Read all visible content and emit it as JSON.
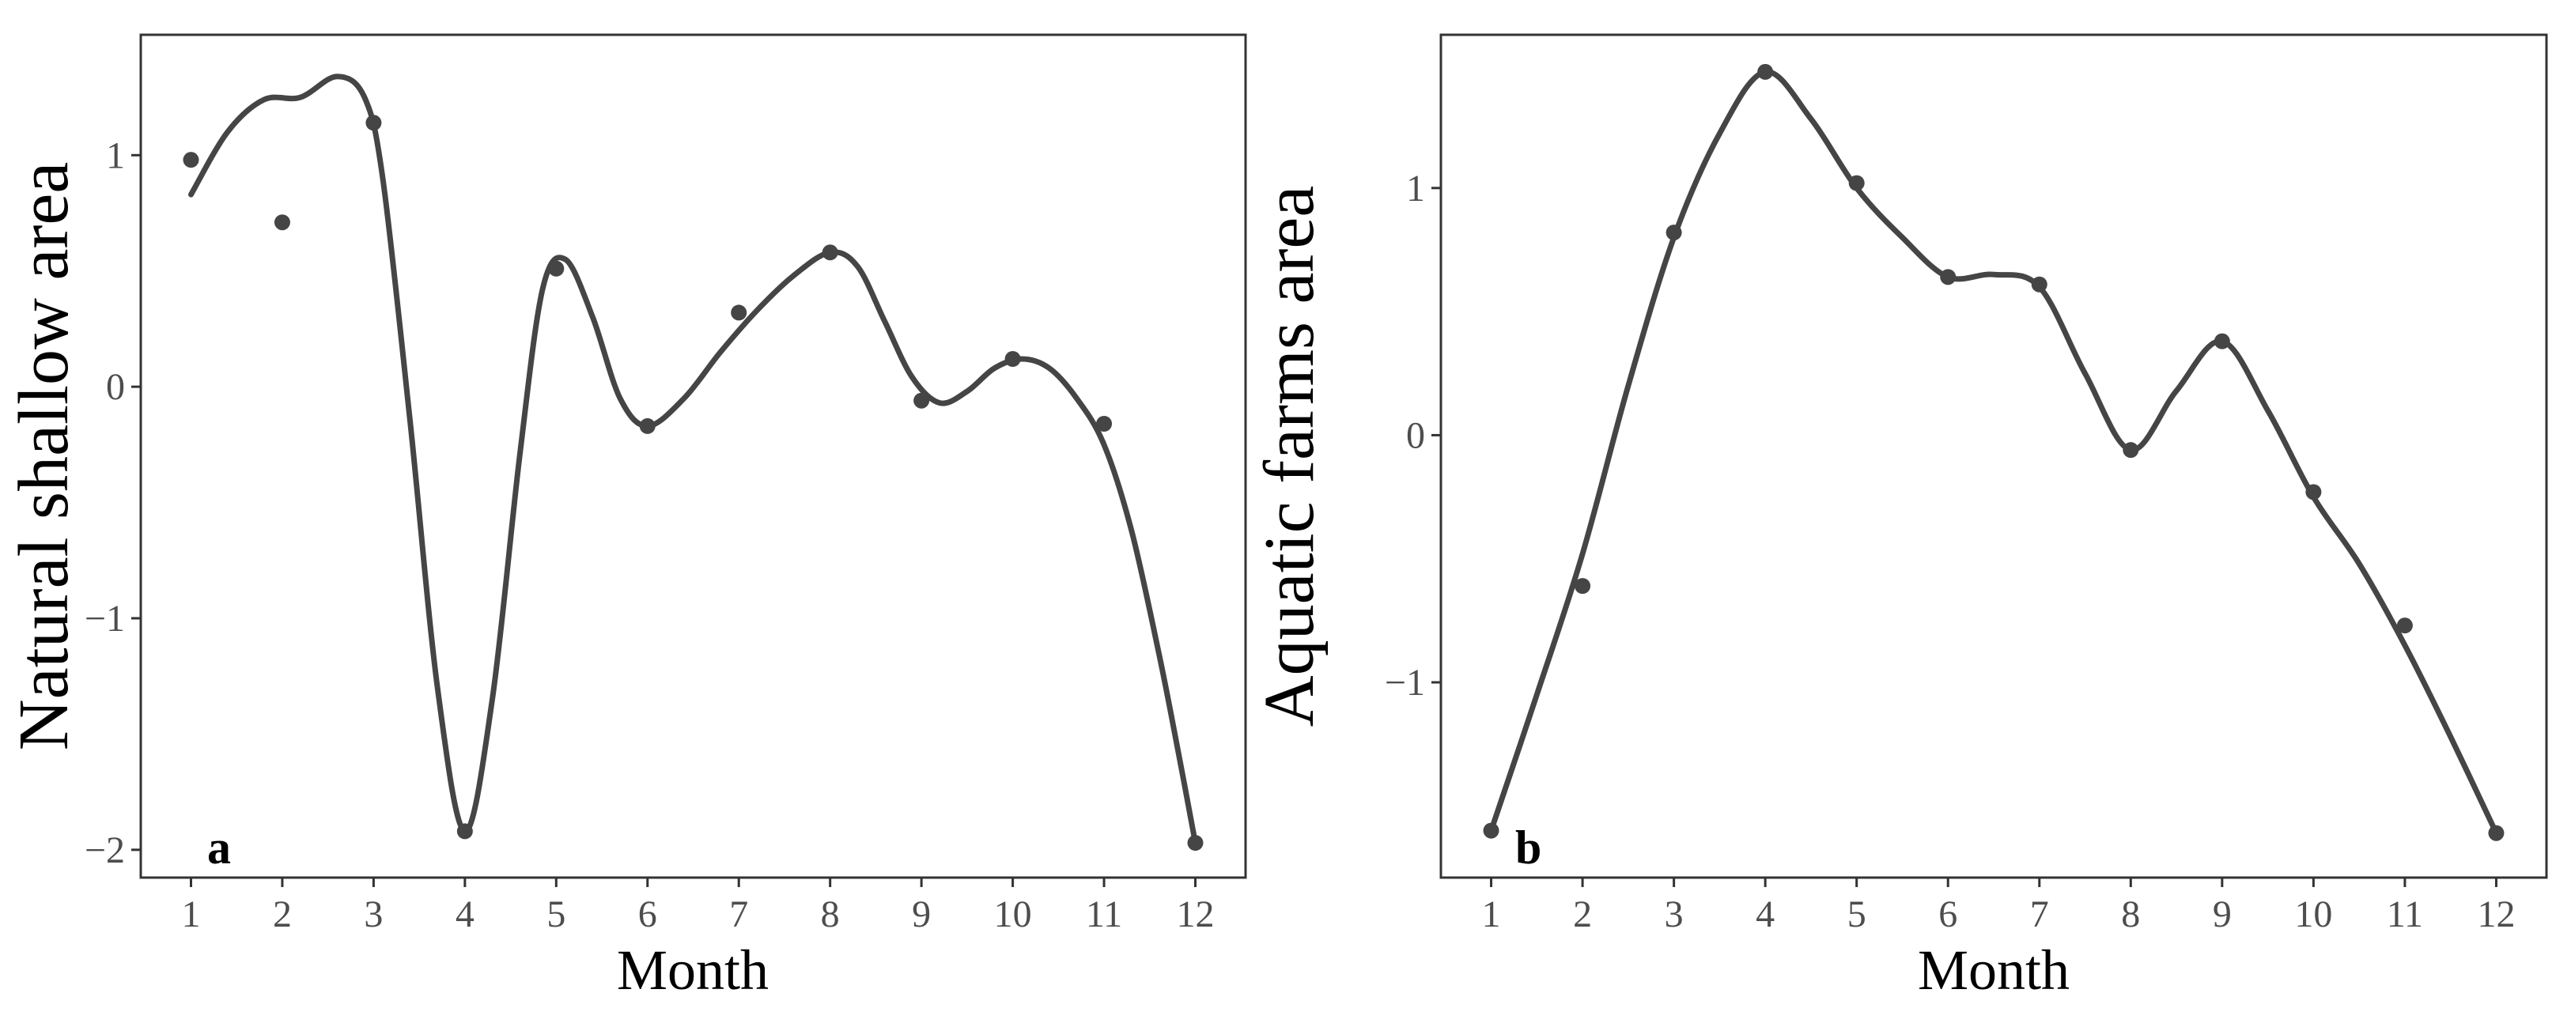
{
  "colors": {
    "series": "#454545",
    "frame": "#333333",
    "tick_text": "#4d4d4d"
  },
  "chart_data": [
    {
      "type": "line",
      "panel_label": "a",
      "title": "",
      "xlabel": "Month",
      "ylabel": "Natural shallow area",
      "xlim": [
        0.45,
        12.55
      ],
      "ylim": [
        -2.12,
        1.52
      ],
      "x_ticks": [
        1,
        2,
        3,
        4,
        5,
        6,
        7,
        8,
        9,
        10,
        11,
        12
      ],
      "y_ticks": [
        -2,
        -1,
        0,
        1
      ],
      "y_tick_labels": [
        "−2",
        "−1",
        "0",
        "1"
      ],
      "grid": false,
      "legend": "none",
      "points": {
        "x": [
          1,
          2,
          3,
          4,
          5,
          6,
          7,
          8,
          9,
          10,
          11,
          12
        ],
        "y": [
          0.98,
          0.71,
          1.14,
          -1.92,
          0.51,
          -0.17,
          0.32,
          0.58,
          -0.06,
          0.12,
          -0.16,
          -1.97
        ]
      },
      "smooth_curve": {
        "x": [
          1,
          1.4,
          1.8,
          2.2,
          2.6,
          2.9,
          3.1,
          3.4,
          3.7,
          4,
          4.3,
          4.6,
          4.85,
          5.1,
          5.4,
          5.7,
          6,
          6.4,
          6.8,
          7.2,
          7.6,
          8,
          8.3,
          8.6,
          8.9,
          9.2,
          9.5,
          9.8,
          10.1,
          10.4,
          10.7,
          11,
          11.3,
          11.6,
          11.8,
          12
        ],
        "y": [
          0.83,
          1.1,
          1.24,
          1.25,
          1.34,
          1.25,
          0.9,
          -0.15,
          -1.3,
          -1.92,
          -1.35,
          -0.3,
          0.42,
          0.55,
          0.3,
          -0.05,
          -0.17,
          -0.05,
          0.15,
          0.33,
          0.48,
          0.58,
          0.52,
          0.28,
          0.04,
          -0.07,
          -0.02,
          0.08,
          0.12,
          0.08,
          -0.05,
          -0.25,
          -0.62,
          -1.15,
          -1.55,
          -1.97
        ]
      }
    },
    {
      "type": "line",
      "panel_label": "b",
      "title": "",
      "xlabel": "Month",
      "ylabel": "Aquatic farms area",
      "xlim": [
        0.45,
        12.55
      ],
      "ylim": [
        -1.79,
        1.62
      ],
      "x_ticks": [
        1,
        2,
        3,
        4,
        5,
        6,
        7,
        8,
        9,
        10,
        11,
        12
      ],
      "y_ticks": [
        -1,
        0,
        1
      ],
      "y_tick_labels": [
        "−1",
        "0",
        "1"
      ],
      "grid": false,
      "legend": "none",
      "points": {
        "x": [
          1,
          2,
          3,
          4,
          5,
          6,
          7,
          8,
          9,
          10,
          11,
          12
        ],
        "y": [
          -1.6,
          -0.61,
          0.82,
          1.47,
          1.02,
          0.64,
          0.61,
          -0.06,
          0.38,
          -0.23,
          -0.77,
          -1.61
        ]
      },
      "smooth_curve": {
        "x": [
          1,
          1.5,
          2,
          2.5,
          3,
          3.5,
          4,
          4.5,
          5,
          5.5,
          6,
          6.5,
          7,
          7.5,
          8,
          8.5,
          9,
          9.5,
          10,
          10.5,
          11,
          11.5,
          12
        ],
        "y": [
          -1.6,
          -1.05,
          -0.48,
          0.2,
          0.8,
          1.22,
          1.47,
          1.28,
          1.0,
          0.8,
          0.64,
          0.65,
          0.6,
          0.25,
          -0.06,
          0.18,
          0.38,
          0.1,
          -0.25,
          -0.52,
          -0.85,
          -1.22,
          -1.61
        ]
      }
    }
  ]
}
